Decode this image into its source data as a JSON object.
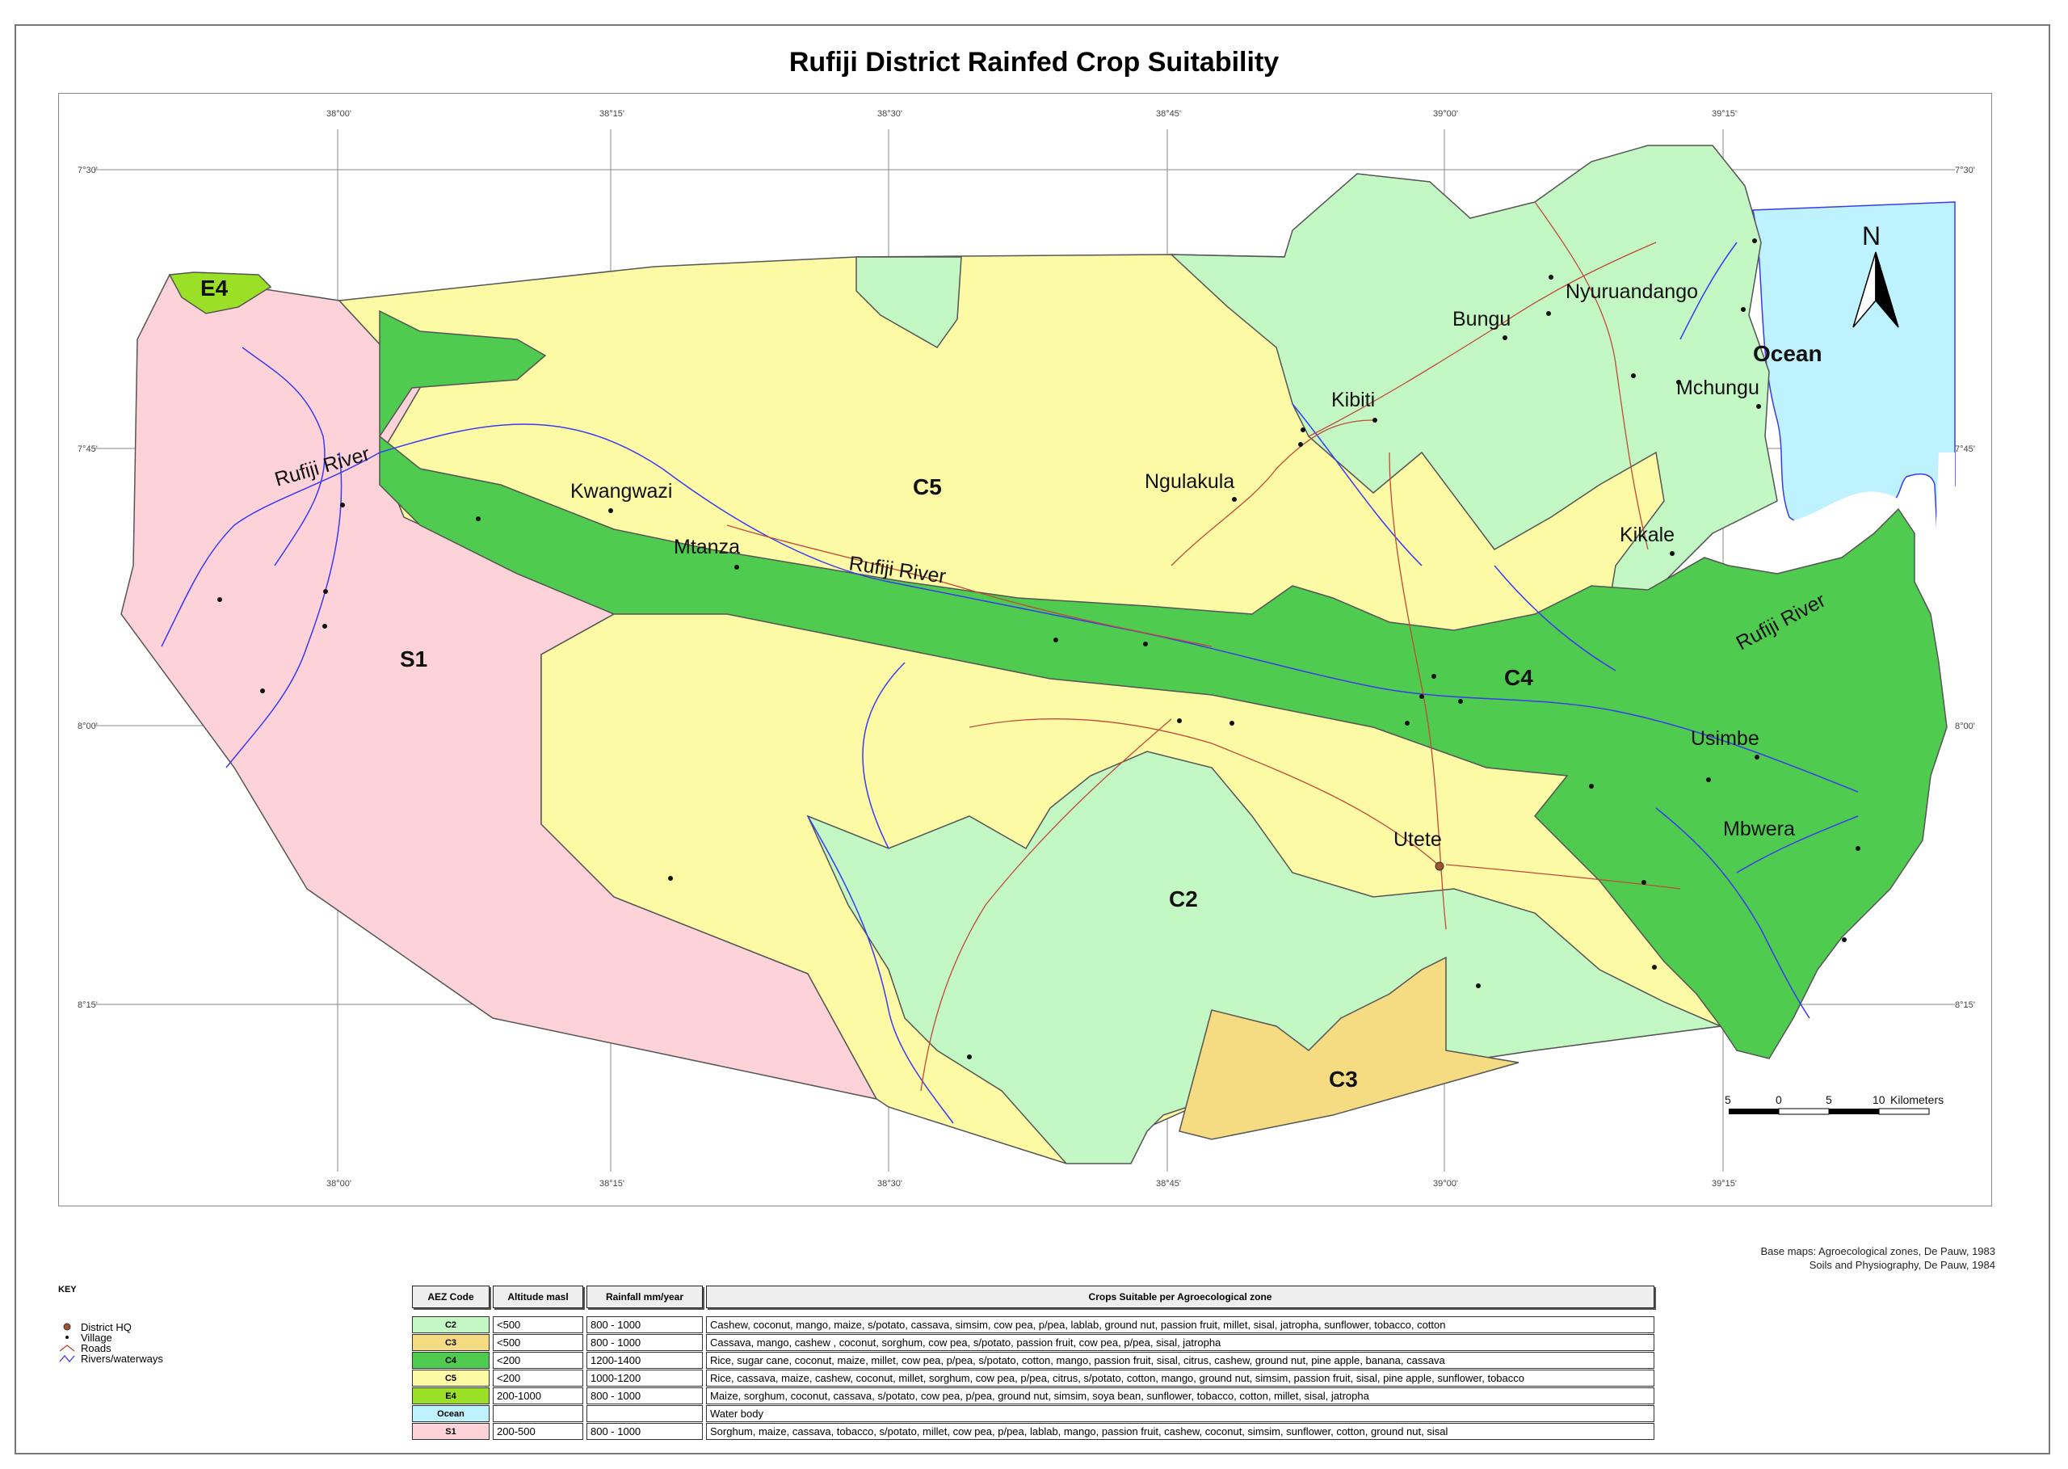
{
  "title": "Rufiji District Rainfed Crop Suitability",
  "map": {
    "zone_labels": [
      "E4",
      "S1",
      "C5",
      "C4",
      "C2",
      "C3"
    ],
    "places": [
      "Kwangwazi",
      "Mtanza",
      "Ngulakula",
      "Kibiti",
      "Bungu",
      "Nyuruandango",
      "Mchungu",
      "Kikale",
      "Usimbe",
      "Mbwera",
      "Utete"
    ],
    "rivers": [
      "Rufiji River",
      "Rufiji River",
      "Rufiji River"
    ],
    "ocean_label": "Ocean",
    "north_label": "N",
    "top_ticks": [
      "38°00'",
      "38°15'",
      "38°30'",
      "38°45'",
      "39°00'",
      "39°15'"
    ],
    "bottom_ticks": [
      "38°00'",
      "38°15'",
      "38°30'",
      "38°45'",
      "39°00'",
      "39°15'"
    ],
    "left_ticks": [
      "7°30'",
      "7°45'",
      "8°00'",
      "8°15'"
    ],
    "right_ticks": [
      "7°30'",
      "7°45'",
      "8°00'",
      "8°15'"
    ],
    "scale_bar": {
      "labels": [
        "5",
        "0",
        "5",
        "10"
      ],
      "unit": "Kilometers"
    }
  },
  "credits": [
    "Base maps: Agroecological zones, De Pauw, 1983",
    "Soils and Physiography, De Pauw, 1984"
  ],
  "key": {
    "title": "KEY",
    "items": [
      {
        "label": "District HQ",
        "icon": "district-hq-icon"
      },
      {
        "label": "Village",
        "icon": "village-icon"
      },
      {
        "label": "Roads",
        "icon": "road-icon"
      },
      {
        "label": "Rivers/waterways",
        "icon": "river-icon"
      }
    ]
  },
  "colors": {
    "C2": "#c3f7c3",
    "C3": "#f5dc82",
    "C4": "#4fcb4f",
    "C5": "#fdfaa6",
    "E4": "#9be026",
    "Ocean": "#bff2ff",
    "S1": "#fdd3d9",
    "river": "#3a3af0",
    "road": "#c04a3a"
  },
  "table": {
    "headers": [
      "AEZ Code",
      "Altitude masl",
      "Rainfall mm/year",
      "Crops Suitable per Agroecological zone"
    ],
    "rows": [
      {
        "code": "C2",
        "altitude": "<500",
        "rainfall": "800 - 1000",
        "crops": "Cashew, coconut, mango, maize, s/potato, cassava, simsim, cow pea, p/pea, lablab, ground nut, passion fruit, millet, sisal, jatropha, sunflower, tobacco, cotton"
      },
      {
        "code": "C3",
        "altitude": "<500",
        "rainfall": "800 - 1000",
        "crops": "Cassava, mango, cashew , coconut, sorghum, cow pea, s/potato, passion fruit, cow pea, p/pea, sisal, jatropha"
      },
      {
        "code": "C4",
        "altitude": "<200",
        "rainfall": "1200-1400",
        "crops": "Rice, sugar cane, coconut, maize, millet, cow pea, p/pea, s/potato, cotton, mango, passion fruit, sisal, citrus, cashew, ground nut, pine apple, banana, cassava"
      },
      {
        "code": "C5",
        "altitude": "<200",
        "rainfall": "1000-1200",
        "crops": "Rice, cassava, maize, cashew, coconut, millet, sorghum, cow pea, p/pea, citrus, s/potato, cotton, mango, ground nut, simsim, passion fruit, sisal, pine apple, sunflower, tobacco"
      },
      {
        "code": "E4",
        "altitude": "200-1000",
        "rainfall": "800 - 1000",
        "crops": "Maize, sorghum, coconut, cassava, s/potato, cow pea, p/pea, ground nut, simsim, soya bean, sunflower, tobacco, cotton, millet, sisal, jatropha"
      },
      {
        "code": "Ocean",
        "altitude": "",
        "rainfall": "",
        "crops": "Water body"
      },
      {
        "code": "S1",
        "altitude": "200-500",
        "rainfall": "800 - 1000",
        "crops": "Sorghum, maize, cassava, tobacco, s/potato, millet, cow pea, p/pea, lablab, mango, passion fruit, cashew, coconut, simsim, sunflower, cotton, ground nut, sisal"
      }
    ]
  }
}
